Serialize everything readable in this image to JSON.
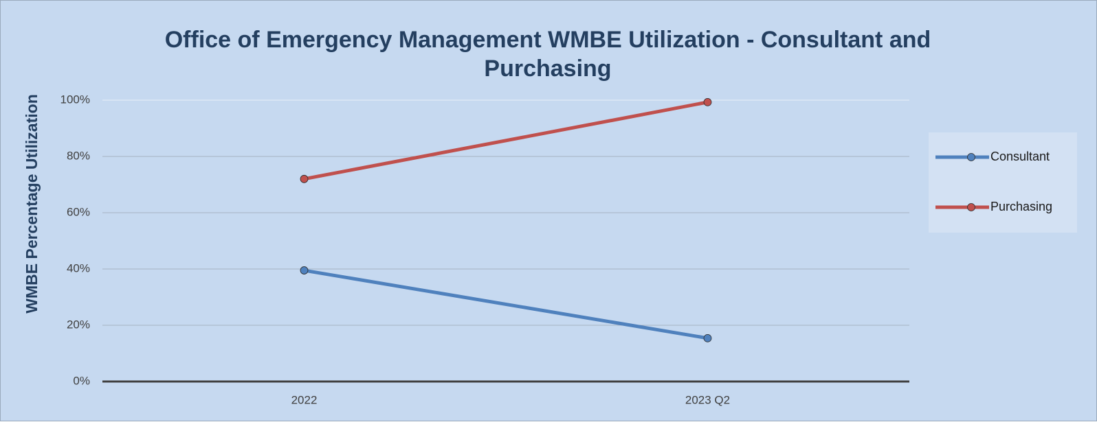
{
  "chart_data": {
    "type": "line",
    "title": "Office of Emergency Management WMBE Utilization - Consultant and Purchasing",
    "y_label": "WMBE Percentage Utilization",
    "categories": [
      "2022",
      "2023 Q2"
    ],
    "series": [
      {
        "name": "Consultant",
        "color": "#4f81bd",
        "values": [
          39.5,
          15.4
        ]
      },
      {
        "name": "Purchasing",
        "color": "#c0504d",
        "values": [
          72,
          99.3
        ]
      }
    ],
    "ylim": [
      0,
      100
    ],
    "yticks": [
      {
        "value": 0,
        "label": "0%"
      },
      {
        "value": 20,
        "label": "20%"
      },
      {
        "value": 40,
        "label": "40%"
      },
      {
        "value": 60,
        "label": "60%"
      },
      {
        "value": 80,
        "label": "80%"
      },
      {
        "value": 100,
        "label": "100%"
      }
    ],
    "grid": true,
    "legend": "right"
  }
}
